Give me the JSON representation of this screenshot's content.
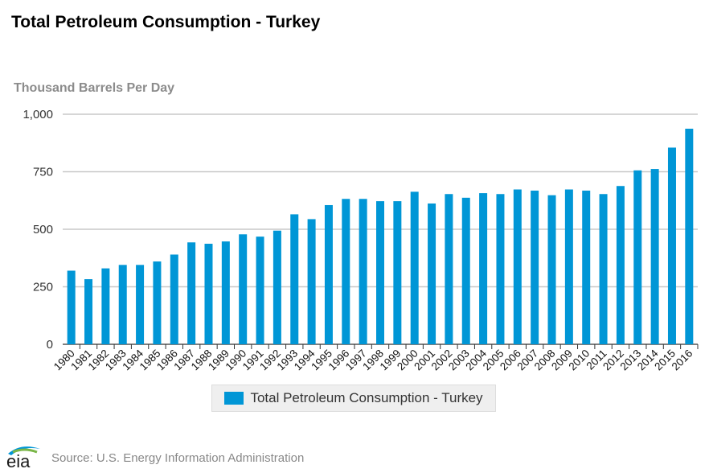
{
  "chart_data": {
    "type": "bar",
    "title": "Total Petroleum Consumption - Turkey",
    "ylabel": "Thousand Barrels Per Day",
    "xlabel": "",
    "ylim": [
      0,
      1000
    ],
    "yticks": [
      0,
      250,
      500,
      750,
      1000
    ],
    "ytick_labels": [
      "0",
      "250",
      "500",
      "750",
      "1,000"
    ],
    "grid": true,
    "legend_position": "bottom-center",
    "categories": [
      "1980",
      "1981",
      "1982",
      "1983",
      "1984",
      "1985",
      "1986",
      "1987",
      "1988",
      "1989",
      "1990",
      "1991",
      "1992",
      "1993",
      "1994",
      "1995",
      "1996",
      "1997",
      "1998",
      "1999",
      "2000",
      "2001",
      "2002",
      "2003",
      "2004",
      "2005",
      "2006",
      "2007",
      "2008",
      "2009",
      "2010",
      "2011",
      "2012",
      "2013",
      "2014",
      "2015",
      "2016"
    ],
    "series": [
      {
        "name": "Total Petroleum Consumption - Turkey",
        "color": "#0096d6",
        "values": [
          320,
          283,
          330,
          345,
          345,
          360,
          390,
          443,
          437,
          447,
          478,
          468,
          494,
          565,
          544,
          605,
          632,
          632,
          622,
          622,
          663,
          612,
          653,
          637,
          657,
          653,
          673,
          668,
          648,
          673,
          668,
          653,
          688,
          756,
          762,
          855,
          937
        ]
      }
    ]
  },
  "source": "Source: U.S. Energy Information Administration",
  "logo_text": "eia"
}
